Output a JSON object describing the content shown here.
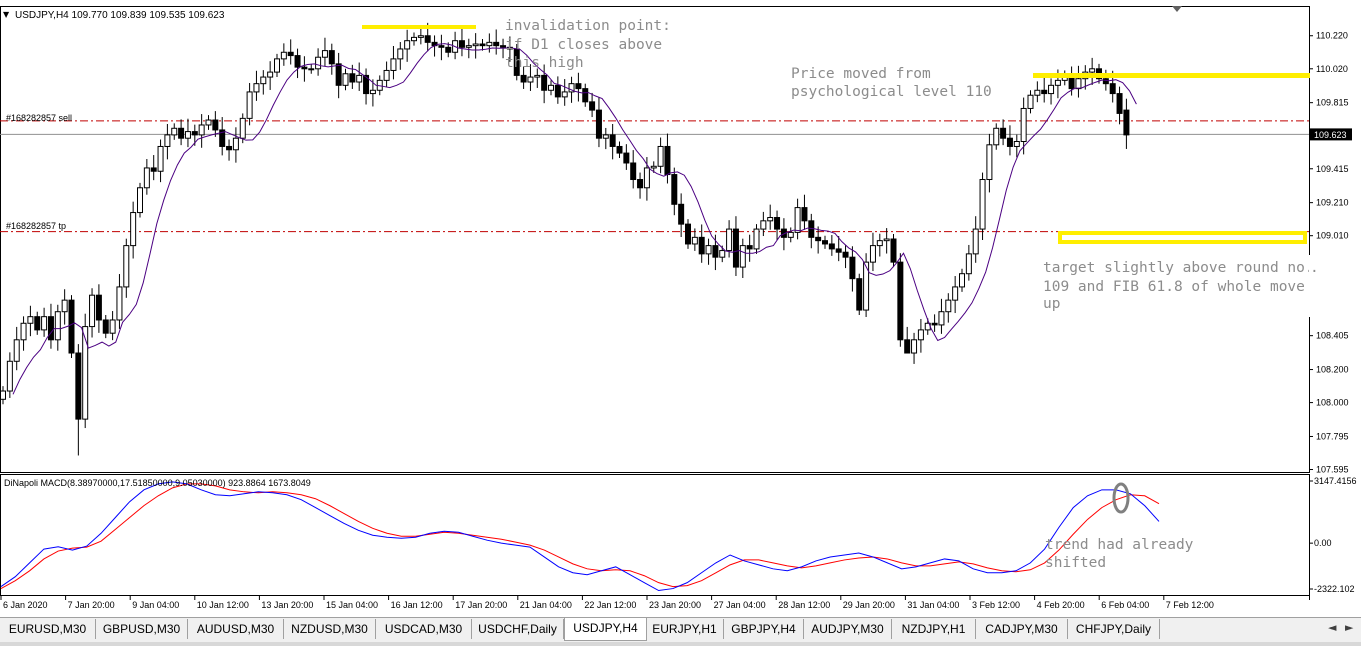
{
  "window": {
    "symbol_header": "USDJPY,H4  109.770 109.839 109.535 109.623",
    "header_arrow": "▼"
  },
  "price_axis": {
    "ticks": [
      "110.220",
      "110.020",
      "109.815",
      "109.415",
      "109.210",
      "109.010",
      "108.405",
      "108.200",
      "108.000",
      "107.795",
      "107.595"
    ],
    "ylim": [
      107.58,
      110.4
    ],
    "current_price_label": "109.623"
  },
  "order_lines": {
    "sell_label": "#168282857 sell",
    "sell_price": 109.705,
    "tp_label": "#168282857 tp",
    "tp_price": 109.035,
    "current_price": 109.623
  },
  "annotations": {
    "invalidation": [
      "invalidation point:",
      "if D1 closes above",
      "this high"
    ],
    "psych": [
      "Price moved from",
      "psychological level 110"
    ],
    "target": [
      "target slightly above round no.",
      "109 and FIB 61.8 of whole move",
      "up"
    ],
    "trend": [
      "trend had already",
      "shifted"
    ]
  },
  "macd": {
    "header": "DiNapoli MACD(8.38970000,17.51850000,9.05030000) 923.8864 1673.8049",
    "ticks": [
      "3147.4156",
      "0.00",
      "-2322.102"
    ],
    "ylim": [
      -2322.102,
      3147.4156
    ]
  },
  "time_axis": [
    "6 Jan 2020",
    "7 Jan 20:00",
    "9 Jan 04:00",
    "10 Jan 12:00",
    "13 Jan 20:00",
    "15 Jan 04:00",
    "16 Jan 12:00",
    "17 Jan 20:00",
    "21 Jan 04:00",
    "22 Jan 12:00",
    "23 Jan 20:00",
    "27 Jan 04:00",
    "28 Jan 12:00",
    "29 Jan 20:00",
    "31 Jan 04:00",
    "3 Feb 12:00",
    "4 Feb 20:00",
    "6 Feb 04:00",
    "7 Feb 12:00"
  ],
  "tabs": [
    "EURUSD,M30",
    "GBPUSD,M30",
    "AUDUSD,M30",
    "NZDUSD,M30",
    "USDCAD,M30",
    "USDCHF,Daily",
    "USDJPY,H4",
    "EURJPY,H1",
    "GBPJPY,H4",
    "AUDJPY,M30",
    "NZDJPY,H1",
    "CADJPY,M30",
    "CHFJPY,Daily"
  ],
  "active_tab": "USDJPY,H4",
  "colors": {
    "up_candle": "#ffffff",
    "down_candle": "#000000",
    "ma_line": "#4b0082",
    "macd_blue": "#0000ff",
    "macd_red": "#ff0000",
    "order_line": "#c00000",
    "highlight": "#ffee00",
    "annotation_text": "#8c8c8c"
  },
  "chart_data": {
    "type": "candlestick",
    "close": [
      108.07,
      108.25,
      108.38,
      108.48,
      108.52,
      108.44,
      108.52,
      108.38,
      108.55,
      108.62,
      108.3,
      107.9,
      108.46,
      108.65,
      108.5,
      108.42,
      108.5,
      108.7,
      108.95,
      109.15,
      109.3,
      109.42,
      109.4,
      109.55,
      109.62,
      109.66,
      109.6,
      109.64,
      109.62,
      109.68,
      109.71,
      109.65,
      109.55,
      109.53,
      109.6,
      109.72,
      109.88,
      109.93,
      109.97,
      110.0,
      110.08,
      110.12,
      110.1,
      110.03,
      110.02,
      110.02,
      110.09,
      110.13,
      110.05,
      109.92,
      109.99,
      109.94,
      109.98,
      109.87,
      109.89,
      109.95,
      110.01,
      110.08,
      110.14,
      110.19,
      110.21,
      110.22,
      110.18,
      110.16,
      110.15,
      110.12,
      110.19,
      110.15,
      110.16,
      110.17,
      110.16,
      110.18,
      110.16,
      110.15,
      110.14,
      109.98,
      109.94,
      109.97,
      109.98,
      109.89,
      109.92,
      109.85,
      109.88,
      109.93,
      109.9,
      109.82,
      109.77,
      109.6,
      109.62,
      109.55,
      109.51,
      109.45,
      109.35,
      109.3,
      109.42,
      109.43,
      109.55,
      109.38,
      109.2,
      109.08,
      108.96,
      109.0,
      108.9,
      108.95,
      108.88,
      108.92,
      109.05,
      108.82,
      108.95,
      108.93,
      109.05,
      109.1,
      109.12,
      109.05,
      109.0,
      109.03,
      109.18,
      109.1,
      109.0,
      108.98,
      108.96,
      108.93,
      108.91,
      108.88,
      108.75,
      108.56,
      108.85,
      108.95,
      108.98,
      108.99,
      108.85,
      108.38,
      108.3,
      108.38,
      108.44,
      108.48,
      108.47,
      108.55,
      108.62,
      108.7,
      108.78,
      108.9,
      109.05,
      109.35,
      109.56,
      109.66,
      109.6,
      109.55,
      109.58,
      109.78,
      109.86,
      109.89,
      109.87,
      109.92,
      109.95,
      109.98,
      109.9,
      109.96,
      110.0,
      110.02,
      109.96,
      109.93,
      109.87,
      109.75,
      109.62
    ],
    "last_bar": {
      "open": 109.77,
      "high": 109.839,
      "low": 109.535,
      "close": 109.623
    },
    "macd_blue": [
      -2200,
      -1700,
      -1000,
      -300,
      -180,
      -350,
      -150,
      500,
      1300,
      2100,
      2700,
      3000,
      3100,
      3000,
      2700,
      2450,
      2400,
      2500,
      2600,
      2550,
      2450,
      2200,
      1800,
      1400,
      1000,
      650,
      400,
      300,
      250,
      300,
      500,
      600,
      550,
      350,
      150,
      0,
      -100,
      -200,
      -700,
      -1200,
      -1500,
      -1600,
      -1400,
      -1200,
      -1600,
      -2000,
      -2400,
      -2300,
      -2000,
      -1500,
      -1000,
      -600,
      -900,
      -1100,
      -1300,
      -1400,
      -1200,
      -900,
      -700,
      -600,
      -500,
      -700,
      -1000,
      -1300,
      -1200,
      -1000,
      -800,
      -900,
      -1300,
      -1500,
      -1500,
      -1400,
      -1000,
      -300,
      800,
      1800,
      2400,
      2700,
      2700,
      2500,
      1900,
      1100
    ],
    "macd_red": [
      -2300,
      -1900,
      -1400,
      -800,
      -400,
      -250,
      -200,
      100,
      700,
      1300,
      1900,
      2400,
      2800,
      3000,
      3000,
      2900,
      2700,
      2600,
      2550,
      2600,
      2550,
      2450,
      2250,
      1900,
      1500,
      1100,
      750,
      500,
      350,
      350,
      450,
      550,
      500,
      400,
      300,
      200,
      50,
      -100,
      -350,
      -700,
      -1050,
      -1300,
      -1400,
      -1350,
      -1400,
      -1650,
      -2000,
      -2200,
      -2150,
      -1900,
      -1500,
      -1100,
      -850,
      -850,
      -1000,
      -1150,
      -1250,
      -1150,
      -1000,
      -850,
      -750,
      -700,
      -800,
      -1000,
      -1150,
      -1150,
      -1050,
      -950,
      -1050,
      -1250,
      -1400,
      -1450,
      -1350,
      -1000,
      -350,
      450,
      1200,
      1800,
      2200,
      2450,
      2400,
      2000
    ]
  }
}
